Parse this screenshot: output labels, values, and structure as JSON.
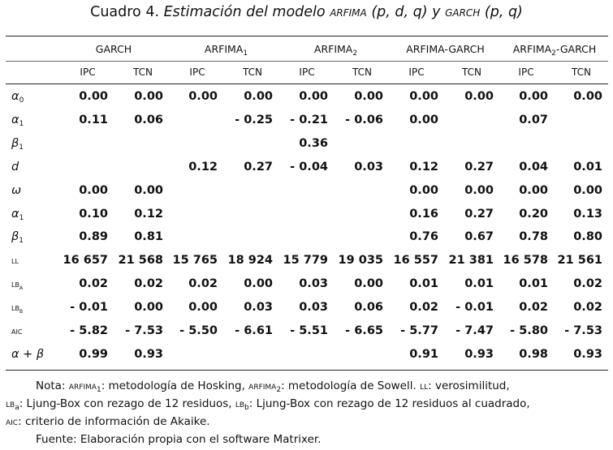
{
  "title": {
    "prefix": "Cuadro 4.",
    "it1": "Estimación del modelo",
    "sc1": "arfima",
    "it2": "(p, d, q) y",
    "sc2": "garch",
    "it3": "(p, q)"
  },
  "groups": [
    {
      "main": "GARCH",
      "sub": ""
    },
    {
      "main": "ARFIMA",
      "sub": "1",
      "after": ""
    },
    {
      "main": "ARFIMA",
      "sub": "2",
      "after": ""
    },
    {
      "main": "ARFIMA-GARCH",
      "sub": ""
    },
    {
      "main": "ARFIMA",
      "sub": "2",
      "after": "-GARCH"
    }
  ],
  "subcols": [
    "IPC",
    "TCN",
    "IPC",
    "TCN",
    "IPC",
    "TCN",
    "IPC",
    "TCN",
    "IPC",
    "TCN"
  ],
  "rows": [
    {
      "sym": "α",
      "sub": "0",
      "values": [
        "0.00",
        "0.00",
        "0.00",
        "0.00",
        "0.00",
        "0.00",
        "0.00",
        "0.00",
        "0.00",
        "0.00"
      ]
    },
    {
      "sym": "α",
      "sub": "1",
      "values": [
        "0.11",
        "0.06",
        "",
        "- 0.25",
        "- 0.21",
        "- 0.06",
        "0.00",
        "",
        "0.07",
        ""
      ]
    },
    {
      "sym": "β",
      "sub": "1",
      "values": [
        "",
        "",
        "",
        "",
        "0.36",
        "",
        "",
        "",
        "",
        ""
      ]
    },
    {
      "sym": "d",
      "sub": "",
      "values": [
        "",
        "",
        "0.12",
        "0.27",
        "- 0.04",
        "0.03",
        "0.12",
        "0.27",
        "0.04",
        "0.01"
      ]
    },
    {
      "sym": "ω",
      "sub": "",
      "values": [
        "0.00",
        "0.00",
        "",
        "",
        "",
        "",
        "0.00",
        "0.00",
        "0.00",
        "0.00"
      ]
    },
    {
      "sym": "α",
      "sub": "1",
      "values": [
        "0.10",
        "0.12",
        "",
        "",
        "",
        "",
        "0.16",
        "0.27",
        "0.20",
        "0.13"
      ]
    },
    {
      "sym": "β",
      "sub": "1",
      "values": [
        "0.89",
        "0.81",
        "",
        "",
        "",
        "",
        "0.76",
        "0.67",
        "0.78",
        "0.80"
      ]
    },
    {
      "sym": "ll",
      "sub": "",
      "sc": true,
      "values": [
        "16 657",
        "21 568",
        "15 765",
        "18 924",
        "15 779",
        "19 035",
        "16 557",
        "21 381",
        "16 578",
        "21 561"
      ]
    },
    {
      "sym": "lb",
      "sub": "a",
      "sc": true,
      "values": [
        "0.02",
        "0.02",
        "0.02",
        "0.00",
        "0.03",
        "0.00",
        "0.01",
        "0.01",
        "0.01",
        "0.02"
      ]
    },
    {
      "sym": "lb",
      "sub": "b",
      "sc": true,
      "values": [
        "- 0.01",
        "0.00",
        "0.00",
        "0.03",
        "0.03",
        "0.06",
        "0.02",
        "- 0.01",
        "0.02",
        "0.02"
      ]
    },
    {
      "sym": "aic",
      "sub": "",
      "sc": true,
      "values": [
        "- 5.82",
        "- 7.53",
        "- 5.50",
        "- 6.61",
        "- 5.51",
        "- 6.65",
        "- 5.77",
        "- 7.47",
        "- 5.80",
        "- 7.53"
      ]
    },
    {
      "sym": "α + β",
      "sub": "",
      "values": [
        "0.99",
        "0.93",
        "",
        "",
        "",
        "",
        "0.91",
        "0.93",
        "0.98",
        "0.93"
      ]
    }
  ],
  "notes": {
    "n_prefix": "Nota:",
    "n_arfima": "arfima",
    "n_sub1": "1",
    "n_t1": ": metodología de Hosking,",
    "n_sub2": "2",
    "n_t2": ": metodología de Sowell.",
    "n_ll": "ll",
    "n_t3": ": verosimilitud,",
    "n_lb": "lb",
    "n_suba": "a",
    "n_t4": ": Ljung-Box con rezago de 12 residuos,",
    "n_subb": "b",
    "n_t5": ": Ljung-Box con rezago de 12 residuos al cuadrado,",
    "n_aic": "aic",
    "n_t6": ": criterio de información de Akaike.",
    "source": "Fuente: Elaboración propia con el software Matrixer."
  }
}
